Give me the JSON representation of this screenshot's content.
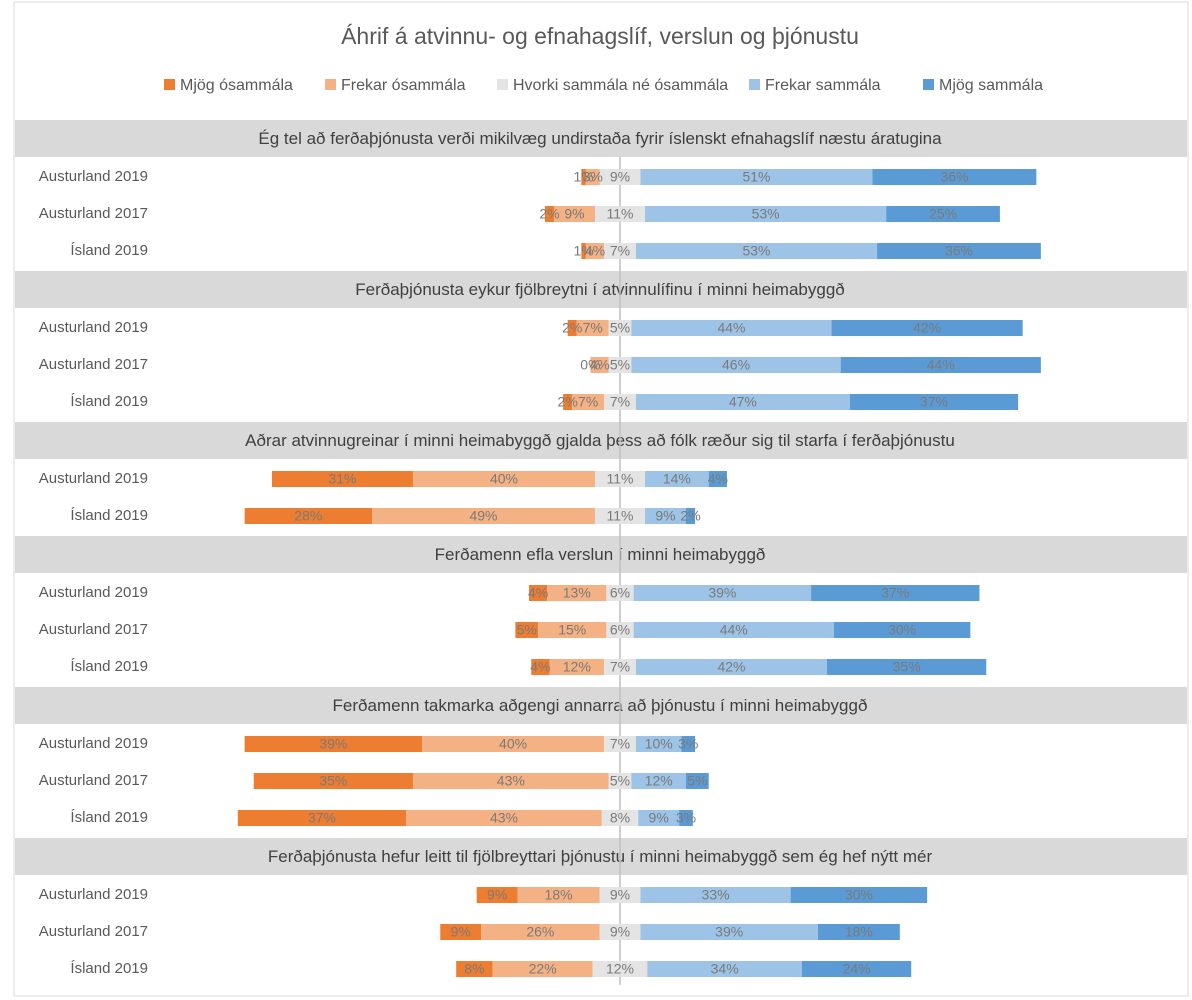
{
  "chart_data": {
    "type": "diverging_bar",
    "title": "Áhrif á atvinnu- og efnahagslíf, verslun og þjónustu",
    "series": [
      {
        "name": "Mjög ósammála",
        "color": "#ed7d31"
      },
      {
        "name": "Frekar ósammála",
        "color": "#f4b183"
      },
      {
        "name": "Hvorki sammála né ósammála",
        "color": "#e4e4e4"
      },
      {
        "name": "Frekar sammála",
        "color": "#9dc3e6"
      },
      {
        "name": "Mjög sammála",
        "color": "#5b9bd5"
      }
    ],
    "groups": [
      {
        "title": "Ég tel að ferðaþjónusta verði mikilvæg undirstaða fyrir íslenskt efnahagslíf næstu áratugina",
        "rows": [
          {
            "label": "Austurland 2019",
            "values": [
              1,
              3,
              9,
              51,
              36
            ],
            "value_labels": [
              "1%",
              "3%",
              "9%",
              "51%",
              "36%"
            ]
          },
          {
            "label": "Austurland 2017",
            "values": [
              2,
              9,
              11,
              53,
              25
            ],
            "value_labels": [
              "2%",
              "9%",
              "11%",
              "53%",
              "25%"
            ]
          },
          {
            "label": "Ísland 2019",
            "values": [
              1,
              4,
              7,
              53,
              36
            ],
            "value_labels": [
              "1%",
              "4%",
              "7%",
              "53%",
              "36%"
            ]
          }
        ]
      },
      {
        "title": "Ferðaþjónusta eykur fjölbreytni í atvinnulífinu í minni heimabyggð",
        "rows": [
          {
            "label": "Austurland 2019",
            "values": [
              2,
              7,
              5,
              44,
              42
            ],
            "value_labels": [
              "2%",
              "7%",
              "5%",
              "44%",
              "42%"
            ]
          },
          {
            "label": "Austurland 2017",
            "values": [
              0,
              4,
              5,
              46,
              44
            ],
            "value_labels": [
              "0%",
              "4%",
              "5%",
              "46%",
              "44%"
            ]
          },
          {
            "label": "Ísland 2019",
            "values": [
              2,
              7,
              7,
              47,
              37
            ],
            "value_labels": [
              "2%",
              "7%",
              "7%",
              "47%",
              "37%"
            ]
          }
        ]
      },
      {
        "title": "Aðrar atvinnugreinar í minni heimabyggð gjalda þess að fólk ræður sig til starfa í ferðaþjónustu",
        "rows": [
          {
            "label": "Austurland 2019",
            "values": [
              31,
              40,
              11,
              14,
              4
            ],
            "value_labels": [
              "31%",
              "40%",
              "11%",
              "14%",
              "4%"
            ]
          },
          {
            "label": "Ísland 2019",
            "values": [
              28,
              49,
              11,
              9,
              2
            ],
            "value_labels": [
              "28%",
              "49%",
              "11%",
              "9%",
              "2%"
            ]
          }
        ]
      },
      {
        "title": "Ferðamenn efla verslun í minni heimabyggð",
        "rows": [
          {
            "label": "Austurland 2019",
            "values": [
              4,
              13,
              6,
              39,
              37
            ],
            "value_labels": [
              "4%",
              "13%",
              "6%",
              "39%",
              "37%"
            ]
          },
          {
            "label": "Austurland 2017",
            "values": [
              5,
              15,
              6,
              44,
              30
            ],
            "value_labels": [
              "5%",
              "15%",
              "6%",
              "44%",
              "30%"
            ]
          },
          {
            "label": "Ísland 2019",
            "values": [
              4,
              12,
              7,
              42,
              35
            ],
            "value_labels": [
              "4%",
              "12%",
              "7%",
              "42%",
              "35%"
            ]
          }
        ]
      },
      {
        "title": "Ferðamenn takmarka aðgengi annarra að þjónustu í minni heimabyggð",
        "rows": [
          {
            "label": "Austurland 2019",
            "values": [
              39,
              40,
              7,
              10,
              3
            ],
            "value_labels": [
              "39%",
              "40%",
              "7%",
              "10%",
              "3%"
            ]
          },
          {
            "label": "Austurland 2017",
            "values": [
              35,
              43,
              5,
              12,
              5
            ],
            "value_labels": [
              "35%",
              "43%",
              "5%",
              "12%",
              "5%"
            ]
          },
          {
            "label": "Ísland 2019",
            "values": [
              37,
              43,
              8,
              9,
              3
            ],
            "value_labels": [
              "37%",
              "43%",
              "8%",
              "9%",
              "3%"
            ]
          }
        ]
      },
      {
        "title": "Ferðaþjónusta hefur leitt til fjölbreyttari þjónustu í minni heimabyggð sem ég hef nýtt mér",
        "rows": [
          {
            "label": "Austurland 2019",
            "values": [
              9,
              18,
              9,
              33,
              30
            ],
            "value_labels": [
              "9%",
              "18%",
              "9%",
              "33%",
              "30%"
            ]
          },
          {
            "label": "Austurland 2017",
            "values": [
              9,
              26,
              9,
              39,
              18
            ],
            "value_labels": [
              "9%",
              "26%",
              "9%",
              "39%",
              "18%"
            ]
          },
          {
            "label": "Ísland 2019",
            "values": [
              8,
              22,
              12,
              34,
              24
            ],
            "value_labels": [
              "8%",
              "22%",
              "12%",
              "34%",
              "24%"
            ]
          }
        ]
      }
    ]
  }
}
